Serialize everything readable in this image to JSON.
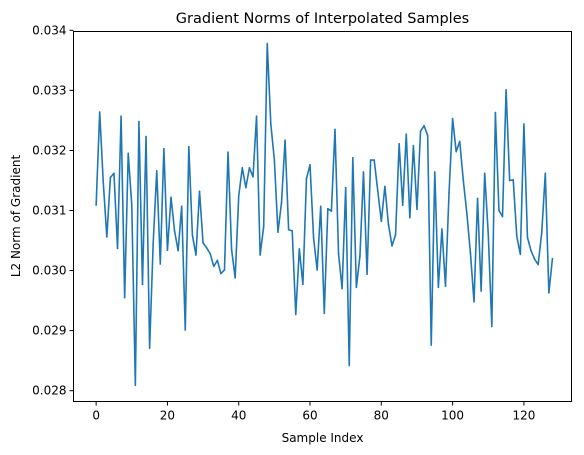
{
  "chart_data": {
    "type": "line",
    "title": "Gradient Norms of Interpolated Samples",
    "xlabel": "Sample Index",
    "ylabel": "L2 Norm of Gradient",
    "xlim": [
      -6.35,
      133.35
    ],
    "ylim": [
      0.02782,
      0.03398
    ],
    "xticks": [
      0,
      20,
      40,
      60,
      80,
      100,
      120
    ],
    "yticks": [
      0.028,
      0.029,
      0.03,
      0.031,
      0.032,
      0.033,
      0.034
    ],
    "ytick_labels": [
      "0.028",
      "0.029",
      "0.030",
      "0.031",
      "0.032",
      "0.033",
      "0.034"
    ],
    "grid": false,
    "series": [
      {
        "color": "#1f77b4",
        "values": [
          0.03109,
          0.03264,
          0.03147,
          0.03056,
          0.03155,
          0.03162,
          0.03037,
          0.03257,
          0.02955,
          0.03195,
          0.03109,
          0.02809,
          0.03248,
          0.02977,
          0.03223,
          0.02871,
          0.03045,
          0.03166,
          0.03011,
          0.03203,
          0.03034,
          0.03122,
          0.03066,
          0.03033,
          0.03107,
          0.02901,
          0.03206,
          0.03059,
          0.03026,
          0.03132,
          0.03046,
          0.03038,
          0.03028,
          0.03007,
          0.03017,
          0.02995,
          0.03001,
          0.03197,
          0.03035,
          0.02988,
          0.03124,
          0.03171,
          0.03138,
          0.03171,
          0.03156,
          0.03257,
          0.03026,
          0.03073,
          0.03378,
          0.03244,
          0.03184,
          0.03064,
          0.03113,
          0.03217,
          0.03068,
          0.03066,
          0.02927,
          0.03036,
          0.02977,
          0.03153,
          0.03176,
          0.03054,
          0.03001,
          0.03107,
          0.02929,
          0.03103,
          0.03099,
          0.03235,
          0.03028,
          0.0297,
          0.03138,
          0.02842,
          0.03188,
          0.02972,
          0.03024,
          0.03164,
          0.02994,
          0.03184,
          0.03184,
          0.03133,
          0.03082,
          0.0314,
          0.03077,
          0.03041,
          0.0306,
          0.03211,
          0.03109,
          0.03227,
          0.03088,
          0.03208,
          0.03102,
          0.03232,
          0.03241,
          0.03225,
          0.02876,
          0.03164,
          0.02972,
          0.03069,
          0.02974,
          0.0313,
          0.03253,
          0.03198,
          0.03215,
          0.0315,
          0.03095,
          0.03029,
          0.02948,
          0.0312,
          0.02966,
          0.03162,
          0.03061,
          0.02907,
          0.03263,
          0.031,
          0.0309,
          0.03301,
          0.0315,
          0.03151,
          0.03057,
          0.03027,
          0.03244,
          0.03055,
          0.03033,
          0.03019,
          0.0301,
          0.03063,
          0.03162,
          0.02963,
          0.0302
        ]
      }
    ]
  }
}
